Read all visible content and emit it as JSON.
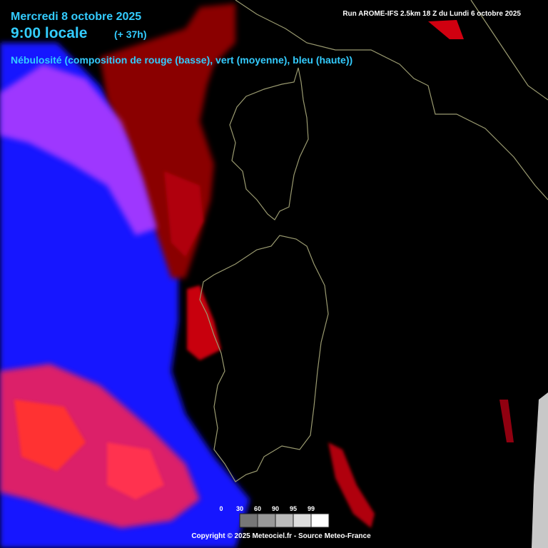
{
  "header": {
    "date": "Mercredi 8 octobre 2025",
    "time": "9:00 locale",
    "offset": "(+ 37h)",
    "run": "Run AROME-IFS 2.5km 18 Z du Lundi 6 octobre 2025",
    "title": "Nébulosité (composition de rouge (basse), vert (moyenne), bleu (haute))"
  },
  "legend": {
    "labels": [
      0,
      30,
      60,
      90,
      95,
      99
    ]
  },
  "footer": {
    "copyright": "Copyright © 2025 Meteociel.fr - Source Meteo-France"
  }
}
